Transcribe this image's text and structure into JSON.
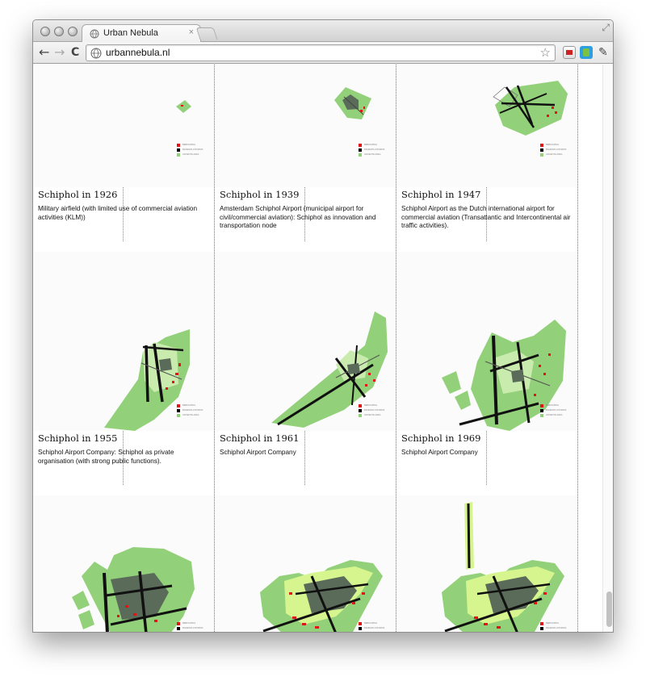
{
  "browser": {
    "tab_title": "Urban Nebula",
    "tab_close": "×",
    "url": "urbannebula.nl",
    "nav": {
      "back": "←",
      "forward": "→",
      "reload": "C"
    },
    "star": "☆",
    "wrench": "✎",
    "resize": "⤢"
  },
  "legend": {
    "items": [
      {
        "label": "BEBOUWING",
        "color": "#e01616"
      },
      {
        "label": "BANEN/PLATFORMS",
        "color": "#000000"
      },
      {
        "label": "GROENTE AREA",
        "color": "#92d17a"
      }
    ]
  },
  "colors": {
    "green": "#92d17a",
    "light_green": "#d6f58e",
    "black": "#111111",
    "red": "#e01616",
    "gray": "#5b6b5a"
  },
  "panels": [
    {
      "title": "Schiphol in 1926",
      "description": "Military airfield (with limited use of commercial aviation activities (KLM))"
    },
    {
      "title": "Schiphol in 1939",
      "description": "Amsterdam Schiphol Airport (municipal airport for civil/commercial aviation): Schiphol as innovation and transportation node"
    },
    {
      "title": "Schiphol in 1947",
      "description": "Schiphol Airport as the Dutch international airport for commercial aviation (Transatlantic and Intercontinental air traffic activities)."
    },
    {
      "title": "Schiphol in 1955",
      "description": "Schiphol Airport Company: Schiphol as private organisation (with strong public functions)."
    },
    {
      "title": "Schiphol in 1961",
      "description": "Schiphol Airport Company"
    },
    {
      "title": "Schiphol in 1969",
      "description": "Schiphol Airport Company"
    }
  ]
}
